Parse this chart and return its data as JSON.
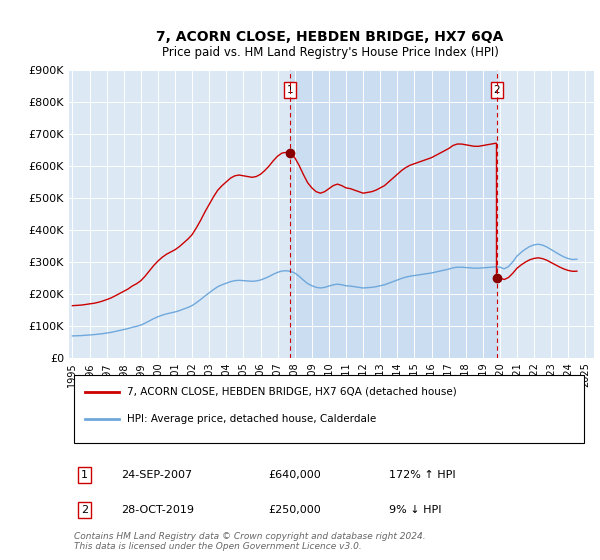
{
  "title": "7, ACORN CLOSE, HEBDEN BRIDGE, HX7 6QA",
  "subtitle": "Price paid vs. HM Land Registry's House Price Index (HPI)",
  "plot_bg_color": "#dce9f5",
  "shade_color": "#c5d9ee",
  "ylim": [
    0,
    900000
  ],
  "yticks": [
    0,
    100000,
    200000,
    300000,
    400000,
    500000,
    600000,
    700000,
    800000,
    900000
  ],
  "ytick_labels": [
    "£0",
    "£100K",
    "£200K",
    "£300K",
    "£400K",
    "£500K",
    "£600K",
    "£700K",
    "£800K",
    "£900K"
  ],
  "xlim_start": 1994.8,
  "xlim_end": 2025.5,
  "hpi_color": "#6fa8dc",
  "price_color": "#cc0000",
  "transaction1_x": 2007.73,
  "transaction1_y": 640000,
  "transaction1_label": "1",
  "transaction2_x": 2019.83,
  "transaction2_y": 250000,
  "transaction2_label": "2",
  "legend_line1": "7, ACORN CLOSE, HEBDEN BRIDGE, HX7 6QA (detached house)",
  "legend_line2": "HPI: Average price, detached house, Calderdale",
  "table_row1_num": "1",
  "table_row1_date": "24-SEP-2007",
  "table_row1_price": "£640,000",
  "table_row1_hpi": "172% ↑ HPI",
  "table_row2_num": "2",
  "table_row2_date": "28-OCT-2019",
  "table_row2_price": "£250,000",
  "table_row2_hpi": "9% ↓ HPI",
  "footer": "Contains HM Land Registry data © Crown copyright and database right 2024.\nThis data is licensed under the Open Government Licence v3.0.",
  "hpi_index": [
    55.0,
    55.3,
    55.6,
    56.2,
    56.9,
    57.5,
    58.5,
    59.8,
    61.4,
    63.1,
    65.4,
    67.8,
    70.2,
    72.6,
    75.8,
    78.2,
    81.4,
    86.2,
    91.8,
    97.4,
    102.2,
    106.2,
    109.4,
    111.8,
    114.2,
    117.4,
    121.4,
    125.4,
    130.2,
    137.4,
    145.4,
    154.2,
    162.2,
    170.2,
    177.2,
    182.0,
    186.0,
    190.0,
    192.4,
    193.2,
    192.4,
    191.6,
    190.8,
    191.6,
    194.0,
    198.0,
    202.8,
    208.4,
    213.2,
    216.4,
    217.2,
    215.6,
    211.6,
    203.6,
    194.0,
    185.2,
    179.6,
    175.6,
    174.0,
    175.6,
    178.8,
    182.0,
    183.6,
    182.0,
    179.6,
    178.8,
    177.2,
    175.6,
    174.0,
    174.8,
    175.6,
    177.2,
    179.6,
    182.0,
    186.0,
    190.0,
    194.0,
    198.0,
    201.2,
    203.6,
    205.2,
    206.8,
    208.4,
    210.0,
    211.6,
    214.0,
    216.4,
    218.8,
    221.2,
    224.4,
    226.0,
    226.0,
    225.2,
    224.4,
    223.6,
    223.6,
    224.4,
    225.2,
    226.0,
    226.8,
    226.0,
    221.8,
    227.6,
    239.6,
    254.0,
    263.6,
    271.6,
    278.0,
    281.8,
    283.4,
    281.0,
    276.4,
    269.8,
    263.4,
    257.0,
    251.5,
    247.5,
    245.0,
    245.5
  ],
  "hpi_base_index_t1": 216.4,
  "hpi_base_index_t2": 226.8,
  "price1": 640000,
  "price2": 250000,
  "hpi_calderdale_y": [
    68000,
    68500,
    69000,
    70000,
    71000,
    72000,
    73500,
    75000,
    77000,
    79000,
    82000,
    85000,
    88000,
    91000,
    95000,
    98000,
    102000,
    108000,
    115000,
    122000,
    128000,
    133000,
    137000,
    140000,
    143000,
    147000,
    152000,
    157000,
    163000,
    172000,
    182000,
    193000,
    203000,
    213000,
    222000,
    228000,
    233000,
    238000,
    241000,
    242000,
    241000,
    240000,
    239000,
    240000,
    243000,
    248000,
    254000,
    261000,
    267000,
    271000,
    272000,
    270000,
    265000,
    255000,
    243000,
    232000,
    225000,
    220000,
    218000,
    220000,
    224000,
    228000,
    230000,
    228000,
    225000,
    224000,
    222000,
    220000,
    218000,
    219000,
    220000,
    222000,
    225000,
    228000,
    233000,
    238000,
    243000,
    248000,
    252000,
    255000,
    257000,
    259000,
    261000,
    263000,
    265000,
    268000,
    271000,
    274000,
    277000,
    281000,
    283000,
    283000,
    282000,
    281000,
    280000,
    280000,
    281000,
    282000,
    283000,
    284000,
    283000,
    278000,
    285000,
    300000,
    318000,
    330000,
    340000,
    348000,
    353000,
    355000,
    352000,
    346000,
    338000,
    330000,
    322000,
    315000,
    310000,
    307000,
    308000
  ],
  "time_x": [
    1995.0,
    1995.25,
    1995.5,
    1995.75,
    1996.0,
    1996.25,
    1996.5,
    1996.75,
    1997.0,
    1997.25,
    1997.5,
    1997.75,
    1998.0,
    1998.25,
    1998.5,
    1998.75,
    1999.0,
    1999.25,
    1999.5,
    1999.75,
    2000.0,
    2000.25,
    2000.5,
    2000.75,
    2001.0,
    2001.25,
    2001.5,
    2001.75,
    2002.0,
    2002.25,
    2002.5,
    2002.75,
    2003.0,
    2003.25,
    2003.5,
    2003.75,
    2004.0,
    2004.25,
    2004.5,
    2004.75,
    2005.0,
    2005.25,
    2005.5,
    2005.75,
    2006.0,
    2006.25,
    2006.5,
    2006.75,
    2007.0,
    2007.25,
    2007.5,
    2007.75,
    2008.0,
    2008.25,
    2008.5,
    2008.75,
    2009.0,
    2009.25,
    2009.5,
    2009.75,
    2010.0,
    2010.25,
    2010.5,
    2010.75,
    2011.0,
    2011.25,
    2011.5,
    2011.75,
    2012.0,
    2012.25,
    2012.5,
    2012.75,
    2013.0,
    2013.25,
    2013.5,
    2013.75,
    2014.0,
    2014.25,
    2014.5,
    2014.75,
    2015.0,
    2015.25,
    2015.5,
    2015.75,
    2016.0,
    2016.25,
    2016.5,
    2016.75,
    2017.0,
    2017.25,
    2017.5,
    2017.75,
    2018.0,
    2018.25,
    2018.5,
    2018.75,
    2019.0,
    2019.25,
    2019.5,
    2019.75,
    2020.0,
    2020.25,
    2020.5,
    2020.75,
    2021.0,
    2021.25,
    2021.5,
    2021.75,
    2022.0,
    2022.25,
    2022.5,
    2022.75,
    2023.0,
    2023.25,
    2023.5,
    2023.75,
    2024.0,
    2024.25,
    2024.5
  ]
}
